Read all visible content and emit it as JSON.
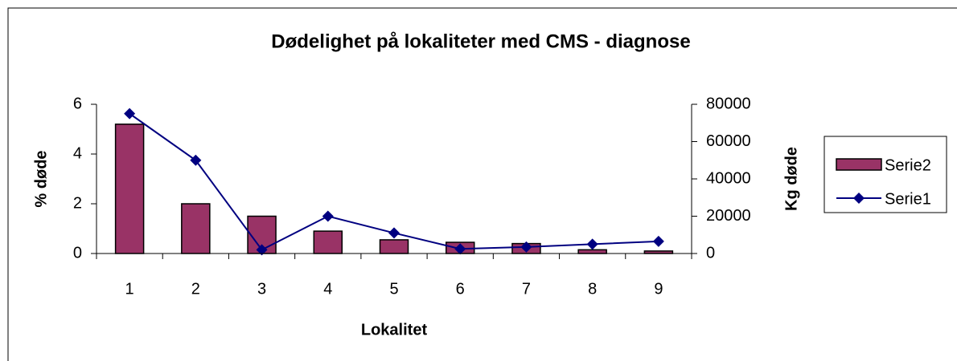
{
  "chart_data": {
    "type": "bar_line",
    "title": "Dødelighet på lokaliteter med CMS - diagnose",
    "x_label": "Lokalitet",
    "y_label": "% døde",
    "y2_label": "Kg døde",
    "categories": [
      "1",
      "2",
      "3",
      "4",
      "5",
      "6",
      "7",
      "8",
      "9"
    ],
    "series": [
      {
        "name": "Serie2",
        "type": "bar",
        "color": "#993366",
        "values": [
          5.2,
          2.0,
          1.5,
          0.9,
          0.55,
          0.45,
          0.4,
          0.15,
          0.1
        ]
      },
      {
        "name": "Serie1",
        "type": "line",
        "axis": "y2",
        "color": "#000080",
        "values": [
          75000,
          50000,
          2000,
          20000,
          11000,
          2500,
          3500,
          5000,
          6500
        ]
      }
    ],
    "ylim": [
      0,
      6
    ],
    "yticks": [
      0,
      2,
      4,
      6
    ],
    "y2lim": [
      0,
      80000
    ],
    "y2ticks": [
      0,
      20000,
      40000,
      60000,
      80000
    ],
    "legend": "right"
  }
}
